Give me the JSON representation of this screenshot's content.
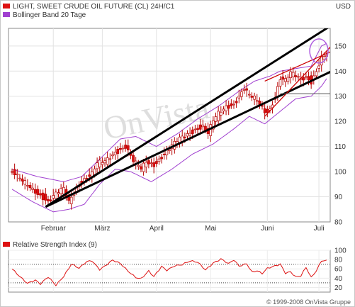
{
  "legend": {
    "price": {
      "label": "LIGHT, SWEET CRUDE OIL FUTURE (CL) 24H/C1",
      "color": "#dd1111"
    },
    "bollinger": {
      "label": "Bollinger Band 20 Tage",
      "color": "#a040d0"
    },
    "rsi": {
      "label": "Relative Strength Index (9)",
      "color": "#dd1111"
    }
  },
  "unit": "USD",
  "watermark": "OnVista",
  "copyright": "© 1999-2008 OnVista Gruppe",
  "chart_data": [
    {
      "type": "candlestick",
      "title": "LIGHT, SWEET CRUDE OIL FUTURE (CL) 24H/C1",
      "ylabel": "USD",
      "ylim": [
        80,
        157
      ],
      "yticks": [
        80,
        90,
        100,
        110,
        120,
        130,
        140,
        150
      ],
      "x_labels": [
        {
          "label": "Februar",
          "index": 16
        },
        {
          "label": "März",
          "index": 35
        },
        {
          "label": "April",
          "index": 56
        },
        {
          "label": "Mai",
          "index": 77
        },
        {
          "label": "Juni",
          "index": 99
        },
        {
          "label": "Juli",
          "index": 119
        }
      ],
      "n_points": 123,
      "close_anchors": [
        [
          0,
          100
        ],
        [
          4,
          96
        ],
        [
          8,
          93
        ],
        [
          12,
          90
        ],
        [
          14,
          88
        ],
        [
          17,
          91
        ],
        [
          20,
          93
        ],
        [
          22,
          88
        ],
        [
          25,
          94
        ],
        [
          28,
          97
        ],
        [
          31,
          99
        ],
        [
          33,
          103
        ],
        [
          36,
          104
        ],
        [
          38,
          106
        ],
        [
          40,
          108
        ],
        [
          44,
          110
        ],
        [
          47,
          104
        ],
        [
          50,
          101
        ],
        [
          52,
          104
        ],
        [
          55,
          103
        ],
        [
          58,
          106
        ],
        [
          62,
          110
        ],
        [
          65,
          113
        ],
        [
          68,
          115
        ],
        [
          71,
          117
        ],
        [
          74,
          118
        ],
        [
          76,
          115
        ],
        [
          78,
          120
        ],
        [
          80,
          123
        ],
        [
          83,
          126
        ],
        [
          86,
          127
        ],
        [
          88,
          130
        ],
        [
          90,
          133
        ],
        [
          92,
          130
        ],
        [
          94,
          129
        ],
        [
          96,
          127
        ],
        [
          98,
          124
        ],
        [
          100,
          125
        ],
        [
          102,
          130
        ],
        [
          104,
          137
        ],
        [
          106,
          136
        ],
        [
          108,
          139
        ],
        [
          110,
          138
        ],
        [
          112,
          137
        ],
        [
          114,
          138
        ],
        [
          116,
          136
        ],
        [
          118,
          140
        ],
        [
          120,
          145
        ],
        [
          122,
          146
        ]
      ],
      "bollinger_upper": [
        [
          0,
          101
        ],
        [
          10,
          98
        ],
        [
          20,
          96
        ],
        [
          27,
          98
        ],
        [
          34,
          105
        ],
        [
          42,
          113
        ],
        [
          48,
          114
        ],
        [
          56,
          110
        ],
        [
          64,
          115
        ],
        [
          72,
          121
        ],
        [
          80,
          126
        ],
        [
          88,
          132
        ],
        [
          94,
          136
        ],
        [
          100,
          138
        ],
        [
          104,
          140
        ],
        [
          110,
          141
        ],
        [
          116,
          142
        ],
        [
          120,
          150
        ],
        [
          122,
          151
        ]
      ],
      "bollinger_lower": [
        [
          0,
          93
        ],
        [
          8,
          88
        ],
        [
          16,
          84
        ],
        [
          22,
          85
        ],
        [
          28,
          87
        ],
        [
          34,
          95
        ],
        [
          40,
          101
        ],
        [
          46,
          100
        ],
        [
          54,
          96
        ],
        [
          62,
          101
        ],
        [
          70,
          107
        ],
        [
          78,
          111
        ],
        [
          86,
          117
        ],
        [
          92,
          122
        ],
        [
          98,
          119
        ],
        [
          104,
          124
        ],
        [
          110,
          129
        ],
        [
          116,
          130
        ],
        [
          120,
          134
        ],
        [
          122,
          137
        ]
      ],
      "trend_lines": [
        {
          "color": "#000000",
          "from": [
            13,
            86
          ],
          "to": [
            122,
            157
          ]
        },
        {
          "color": "#000000",
          "from": [
            13,
            86
          ],
          "to": [
            122,
            139
          ]
        },
        {
          "color": "#cc0000",
          "from": [
            98,
            122
          ],
          "to": [
            122,
            148
          ]
        },
        {
          "color": "#cc0000",
          "from": [
            98,
            136
          ],
          "to": [
            122,
            147
          ]
        }
      ],
      "horizontal_level": {
        "value": 131,
        "from_index": 104,
        "to_index": 122,
        "color": "#555555"
      },
      "highlight_circle": {
        "index": 119,
        "value": 148,
        "color": "#b060e0"
      }
    },
    {
      "type": "line",
      "title": "Relative Strength Index (9)",
      "ylim": [
        10,
        100
      ],
      "yticks": [
        20,
        40,
        60,
        80,
        100
      ],
      "reference_lines": [
        30,
        70
      ],
      "n_points": 123,
      "value_anchors": [
        [
          0,
          60
        ],
        [
          3,
          45
        ],
        [
          6,
          30
        ],
        [
          9,
          35
        ],
        [
          11,
          26
        ],
        [
          14,
          42
        ],
        [
          17,
          26
        ],
        [
          20,
          45
        ],
        [
          23,
          70
        ],
        [
          26,
          60
        ],
        [
          29,
          75
        ],
        [
          31,
          78
        ],
        [
          34,
          60
        ],
        [
          36,
          67
        ],
        [
          39,
          78
        ],
        [
          42,
          70
        ],
        [
          45,
          55
        ],
        [
          48,
          43
        ],
        [
          50,
          40
        ],
        [
          53,
          55
        ],
        [
          55,
          42
        ],
        [
          58,
          64
        ],
        [
          60,
          57
        ],
        [
          63,
          68
        ],
        [
          66,
          70
        ],
        [
          69,
          76
        ],
        [
          72,
          73
        ],
        [
          75,
          58
        ],
        [
          78,
          74
        ],
        [
          81,
          82
        ],
        [
          84,
          70
        ],
        [
          86,
          78
        ],
        [
          88,
          65
        ],
        [
          91,
          72
        ],
        [
          93,
          55
        ],
        [
          95,
          57
        ],
        [
          97,
          50
        ],
        [
          99,
          60
        ],
        [
          102,
          65
        ],
        [
          104,
          70
        ],
        [
          106,
          52
        ],
        [
          108,
          55
        ],
        [
          110,
          44
        ],
        [
          112,
          45
        ],
        [
          114,
          62
        ],
        [
          116,
          40
        ],
        [
          118,
          55
        ],
        [
          120,
          78
        ],
        [
          122,
          79
        ]
      ]
    }
  ]
}
